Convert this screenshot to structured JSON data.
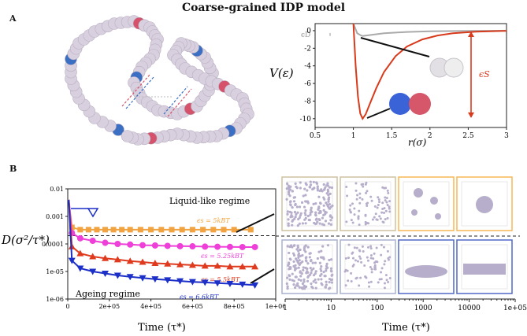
{
  "figure_title": "Coarse-grained IDP model",
  "panel_a_label": "A",
  "panel_b_label": "B",
  "colors": {
    "blue": "#3b6fc4",
    "red": "#d6526a",
    "grey_bead": "#d9d0df",
    "orange": "#f0a340",
    "magenta": "#ee40d8",
    "redmark": "#e03a1e",
    "navy": "#1c2fc8",
    "frame_orange": "#f5b753",
    "frame_blue": "#5068c8"
  },
  "chart_data": [
    {
      "type": "line",
      "ylabel": "V(ε)",
      "xlabel": "r(σ)",
      "xlim": [
        0.5,
        3
      ],
      "ylim": [
        -11,
        0.8
      ],
      "xticks": [
        "0.5",
        "1",
        "1.5",
        "2",
        "2.5",
        "3"
      ],
      "yticks": [
        "0",
        "-2",
        "-4",
        "-6",
        "-8",
        "-10"
      ],
      "series": [
        {
          "name": "",
          "color": "#aaaaaa",
          "x": [
            1.0,
            1.05,
            1.1,
            1.12,
            1.2,
            1.4,
            1.7,
            2.0,
            2.5,
            3.0
          ],
          "y": [
            0.8,
            -0.3,
            -0.55,
            -0.6,
            -0.52,
            -0.3,
            -0.15,
            -0.08,
            -0.03,
            0
          ]
        },
        {
          "name": "",
          "color": "#d83a1c",
          "x": [
            1.0,
            1.03,
            1.06,
            1.09,
            1.12,
            1.16,
            1.22,
            1.3,
            1.4,
            1.55,
            1.7,
            1.9,
            2.1,
            2.3,
            2.6,
            3.0
          ],
          "y": [
            0.8,
            -4,
            -7.5,
            -9.4,
            -10,
            -9.5,
            -8.2,
            -6.5,
            -4.7,
            -2.9,
            -1.8,
            -1.0,
            -0.55,
            -0.3,
            -0.12,
            -0.02
          ]
        }
      ],
      "annotations": {
        "epsilon_d": "ϵD",
        "epsilon_s": "ϵS"
      }
    },
    {
      "type": "line",
      "xlabel": "Time (τ*)",
      "ylabel": "D(σ²/τ*)",
      "log_y": true,
      "ylim": [
        1e-06,
        0.01
      ],
      "xlim": [
        0,
        1000000
      ],
      "xticks": [
        "0",
        "2e+05",
        "4e+05",
        "6e+05",
        "8e+05",
        "1e+06"
      ],
      "yticks": [
        "0.01",
        "0.001",
        "0.0001",
        "1e-05",
        "1e-06"
      ],
      "regime_labels": [
        "Liquid-like regime",
        "Ageing regime"
      ],
      "threshold_y": 0.0002,
      "series": [
        {
          "name": "ϵs = 5kBT",
          "color": "#f0a340",
          "marker": "square",
          "x": [
            5000,
            20000,
            60000,
            100000,
            140000,
            180000,
            220000,
            260000,
            300000,
            350000,
            400000,
            450000,
            500000,
            550000,
            600000,
            650000,
            700000,
            750000,
            800000,
            880000
          ],
          "y": [
            0.004,
            0.0004,
            0.00033,
            0.00033,
            0.00033,
            0.00033,
            0.00033,
            0.00033,
            0.00033,
            0.00033,
            0.00033,
            0.00033,
            0.00033,
            0.00033,
            0.00033,
            0.00033,
            0.00033,
            0.00033,
            0.00033,
            0.00033
          ]
        },
        {
          "name": "ϵs = 5.25kBT",
          "color": "#ee40d8",
          "marker": "circle",
          "x": [
            5000,
            20000,
            60000,
            120000,
            180000,
            240000,
            300000,
            360000,
            420000,
            480000,
            540000,
            600000,
            660000,
            720000,
            780000,
            840000,
            900000
          ],
          "y": [
            0.004,
            0.00025,
            0.00016,
            0.00013,
            0.00011,
            0.0001,
            9.5e-05,
            9e-05,
            8.8e-05,
            8.5e-05,
            8.3e-05,
            8.2e-05,
            8e-05,
            7.9e-05,
            7.8e-05,
            7.7e-05,
            7.7e-05
          ]
        },
        {
          "name": "ϵs = 5.5kBT",
          "color": "#e03a1e",
          "marker": "triangle-up",
          "x": [
            5000,
            20000,
            60000,
            120000,
            180000,
            240000,
            300000,
            360000,
            420000,
            480000,
            540000,
            600000,
            660000,
            720000,
            780000,
            840000,
            900000
          ],
          "y": [
            0.004,
            8e-05,
            4.5e-05,
            3.5e-05,
            3e-05,
            2.7e-05,
            2.4e-05,
            2.2e-05,
            2e-05,
            1.9e-05,
            1.8e-05,
            1.7e-05,
            1.6e-05,
            1.6e-05,
            1.5e-05,
            1.5e-05,
            1.5e-05
          ]
        },
        {
          "name": "ϵs = 6.6kBT",
          "color": "#1c2fc8",
          "marker": "triangle-down",
          "x": [
            5000,
            20000,
            60000,
            120000,
            180000,
            240000,
            300000,
            360000,
            420000,
            480000,
            540000,
            600000,
            660000,
            720000,
            780000,
            840000,
            900000
          ],
          "y": [
            0.004,
            2.5e-05,
            1.3e-05,
            1e-05,
            8.5e-06,
            7.2e-06,
            6.4e-06,
            5.8e-06,
            5.3e-06,
            4.9e-06,
            4.5e-06,
            4.2e-06,
            4e-06,
            3.8e-06,
            3.6e-06,
            3.4e-06,
            3.2e-06
          ]
        }
      ]
    },
    {
      "type": "scatter",
      "xlabel": "Time (τ*)",
      "log_x": true,
      "xlim": [
        1,
        100000
      ],
      "xticks": [
        "1",
        "10",
        "100",
        "1000",
        "10000",
        "1e+05"
      ],
      "snapshots_top": [
        "dense network",
        "fragmented network",
        "droplets",
        "single droplet"
      ],
      "snapshots_bottom": [
        "dense network",
        "fragmented network",
        "elongated condensate",
        "slab condensate"
      ]
    }
  ]
}
